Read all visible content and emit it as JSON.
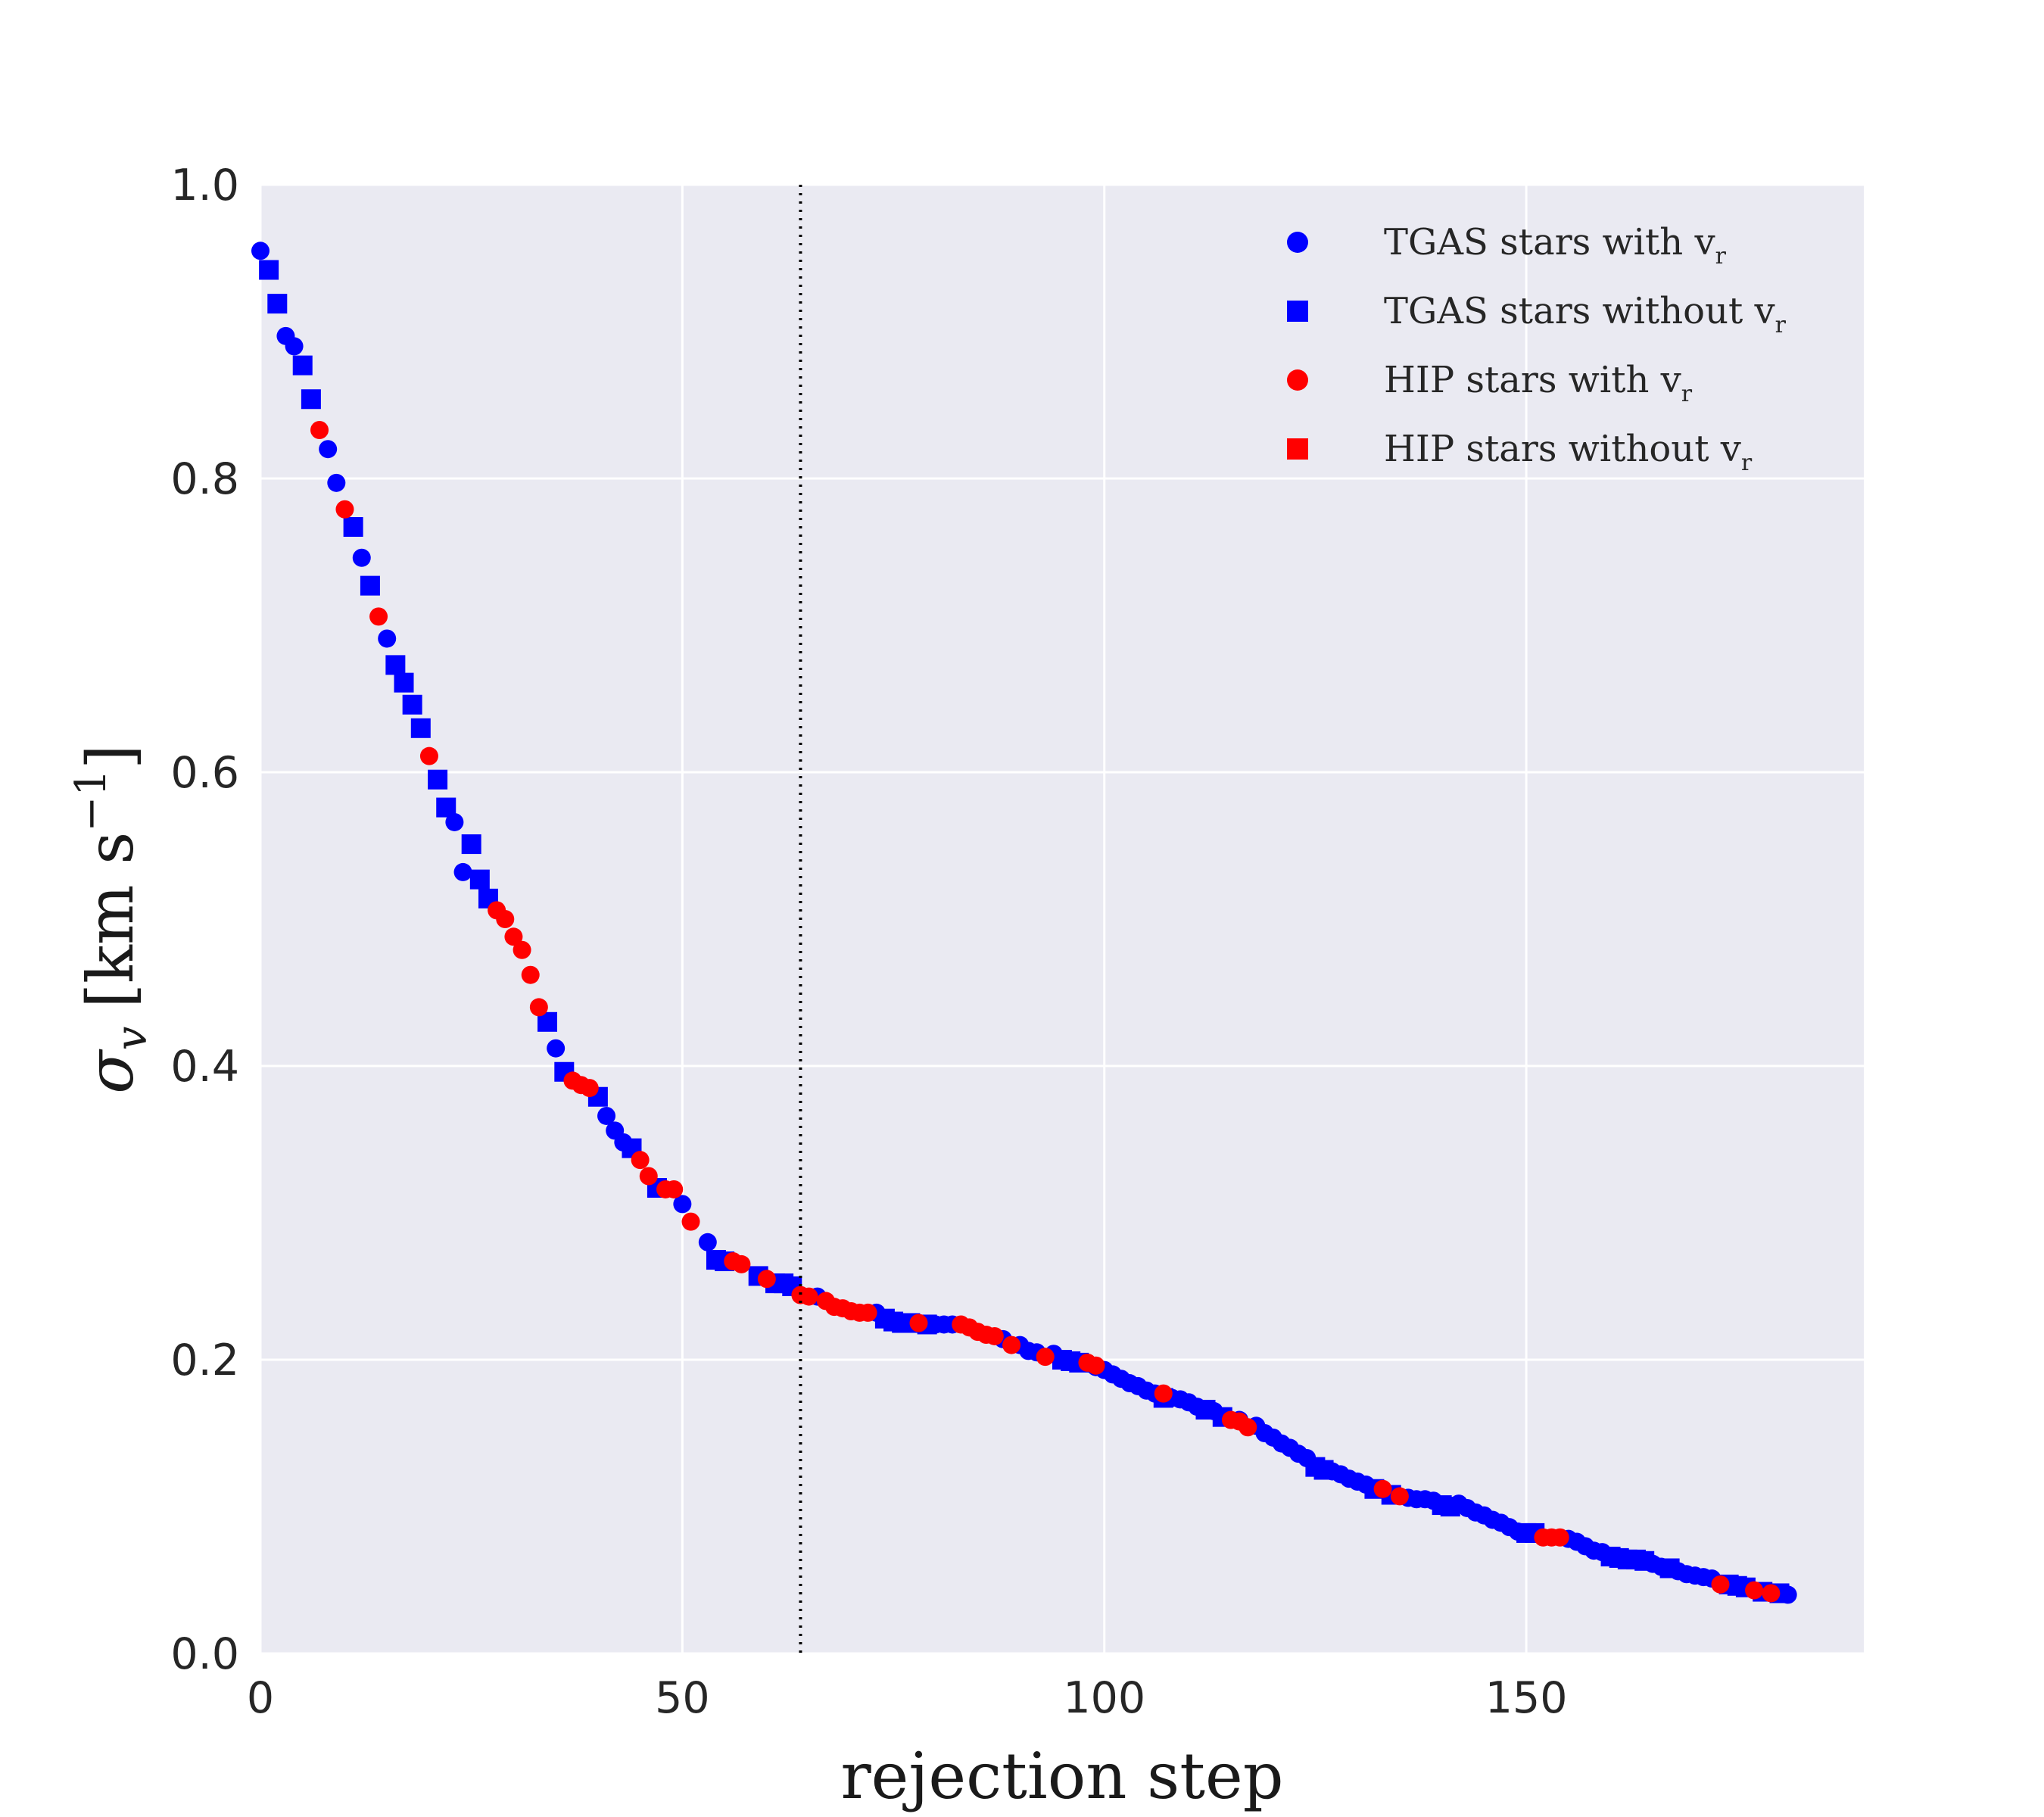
{
  "chart_data": {
    "type": "scatter",
    "xlabel": "rejection step",
    "ylabel": "σ_v [km s^−1]",
    "ylabel_parts": {
      "symbol": "σ",
      "subscript": "v",
      "unit": "[km s",
      "exponent": "−1",
      "close": "]"
    },
    "xlim": [
      0,
      190
    ],
    "ylim": [
      0.0,
      1.0
    ],
    "xticks": [
      "0",
      "50",
      "100",
      "150"
    ],
    "yticks": [
      "0.0",
      "0.2",
      "0.4",
      "0.6",
      "0.8",
      "1.0"
    ],
    "grid": true,
    "background": "#EAEAF2",
    "vline": {
      "x": 64,
      "style": "dotted",
      "color": "#000000"
    },
    "legend": {
      "placement": "top-right",
      "entries": [
        {
          "text": "TGAS stars with v",
          "sub": "r",
          "marker": "circle",
          "color": "#0000FF"
        },
        {
          "text": "TGAS stars without v",
          "sub": "r",
          "marker": "square",
          "color": "#0000FF"
        },
        {
          "text": "HIP stars with v",
          "sub": "r",
          "marker": "circle",
          "color": "#FF0000"
        },
        {
          "text": "HIP stars without v",
          "sub": "r",
          "marker": "square",
          "color": "#FF0000"
        }
      ]
    },
    "series": [
      {
        "name": "TGAS stars with v_r",
        "marker": "circle",
        "color": "#0000FF",
        "x": [
          0,
          3,
          4,
          8,
          9,
          12,
          15,
          23,
          24,
          35,
          41,
          42,
          43,
          50,
          53,
          66,
          73,
          80,
          81,
          82,
          88,
          90,
          91,
          92,
          94,
          99,
          100,
          101,
          102,
          103,
          104,
          105,
          106,
          108,
          109,
          110,
          111,
          113,
          116,
          118,
          119,
          120,
          121,
          122,
          123,
          124,
          127,
          128,
          129,
          130,
          131,
          136,
          137,
          138,
          139,
          142,
          143,
          144,
          145,
          146,
          147,
          148,
          149,
          155,
          156,
          157,
          158,
          159,
          165,
          166,
          168,
          169,
          170,
          171,
          172,
          181
        ],
        "y": [
          0.955,
          0.897,
          0.89,
          0.82,
          0.797,
          0.746,
          0.691,
          0.566,
          0.532,
          0.412,
          0.366,
          0.356,
          0.348,
          0.306,
          0.28,
          0.243,
          0.232,
          0.224,
          0.224,
          0.224,
          0.214,
          0.21,
          0.206,
          0.205,
          0.204,
          0.195,
          0.193,
          0.19,
          0.187,
          0.184,
          0.182,
          0.179,
          0.177,
          0.174,
          0.173,
          0.171,
          0.168,
          0.165,
          0.159,
          0.155,
          0.15,
          0.147,
          0.143,
          0.14,
          0.136,
          0.133,
          0.124,
          0.122,
          0.119,
          0.117,
          0.115,
          0.106,
          0.105,
          0.105,
          0.104,
          0.102,
          0.099,
          0.096,
          0.094,
          0.091,
          0.089,
          0.086,
          0.083,
          0.078,
          0.076,
          0.073,
          0.07,
          0.069,
          0.061,
          0.059,
          0.056,
          0.054,
          0.053,
          0.052,
          0.051,
          0.04
        ]
      },
      {
        "name": "TGAS stars without v_r",
        "marker": "square",
        "color": "#0000FF",
        "x": [
          1,
          2,
          5,
          6,
          11,
          13,
          16,
          17,
          18,
          19,
          21,
          22,
          25,
          26,
          27,
          34,
          36,
          40,
          44,
          47,
          54,
          55,
          59,
          61,
          62,
          63,
          74,
          75,
          76,
          77,
          79,
          95,
          96,
          97,
          107,
          112,
          114,
          125,
          126,
          132,
          134,
          140,
          141,
          150,
          151,
          160,
          161,
          162,
          163,
          164,
          167,
          174,
          175,
          176,
          178,
          180
        ],
        "y": [
          0.942,
          0.919,
          0.877,
          0.854,
          0.767,
          0.727,
          0.673,
          0.661,
          0.646,
          0.63,
          0.595,
          0.576,
          0.551,
          0.527,
          0.514,
          0.43,
          0.396,
          0.379,
          0.344,
          0.317,
          0.268,
          0.267,
          0.257,
          0.252,
          0.252,
          0.25,
          0.228,
          0.226,
          0.225,
          0.225,
          0.224,
          0.2,
          0.199,
          0.198,
          0.174,
          0.166,
          0.161,
          0.127,
          0.125,
          0.112,
          0.108,
          0.101,
          0.1,
          0.082,
          0.082,
          0.066,
          0.065,
          0.064,
          0.064,
          0.063,
          0.058,
          0.047,
          0.046,
          0.045,
          0.042,
          0.041
        ]
      },
      {
        "name": "HIP stars with v_r",
        "marker": "circle",
        "color": "#FF0000",
        "x": [
          7,
          10,
          14,
          20,
          28,
          29,
          30,
          31,
          32,
          33,
          37,
          38,
          39,
          45,
          46,
          48,
          49,
          51,
          56,
          57,
          60,
          64,
          65,
          67,
          68,
          69,
          70,
          71,
          72,
          78,
          83,
          84,
          85,
          86,
          87,
          89,
          93,
          98,
          99,
          107,
          115,
          116,
          117,
          133,
          135,
          152,
          153,
          154,
          173,
          177,
          179
        ],
        "y": [
          0.833,
          0.779,
          0.706,
          0.611,
          0.506,
          0.5,
          0.488,
          0.479,
          0.462,
          0.44,
          0.39,
          0.387,
          0.385,
          0.336,
          0.325,
          0.316,
          0.316,
          0.294,
          0.267,
          0.265,
          0.255,
          0.244,
          0.243,
          0.24,
          0.236,
          0.235,
          0.233,
          0.232,
          0.232,
          0.225,
          0.224,
          0.222,
          0.219,
          0.217,
          0.216,
          0.21,
          0.202,
          0.198,
          0.196,
          0.177,
          0.159,
          0.158,
          0.154,
          0.112,
          0.107,
          0.079,
          0.079,
          0.079,
          0.047,
          0.043,
          0.041
        ]
      }
    ]
  }
}
